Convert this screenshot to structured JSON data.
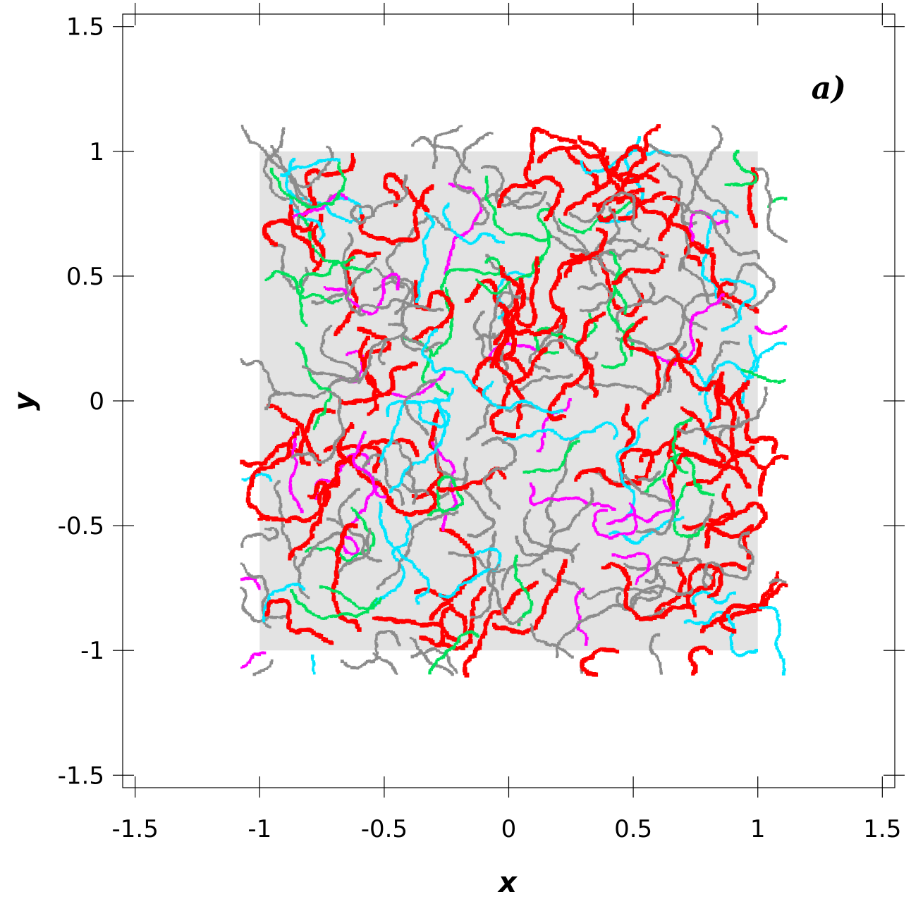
{
  "chart_data": {
    "type": "scatter",
    "title": "",
    "panel_label": "a)",
    "xlabel": "x",
    "ylabel": "y",
    "xlim": [
      -1.55,
      1.55
    ],
    "ylim": [
      -1.55,
      1.55
    ],
    "xticks": [
      -1.5,
      -1,
      -0.5,
      0,
      0.5,
      1,
      1.5
    ],
    "yticks": [
      -1.5,
      -1,
      -0.5,
      0,
      0.5,
      1,
      1.5
    ],
    "xtick_labels": [
      "-1.5",
      "-1",
      "-0.5",
      "0",
      "0.5",
      "1",
      "1.5"
    ],
    "ytick_labels": [
      "-1.5",
      "-1",
      "-0.5",
      "0",
      "0.5",
      "1",
      "1.5"
    ],
    "grid": false,
    "legend": "none",
    "domain_square": {
      "x": [
        -1,
        1
      ],
      "y": [
        -1,
        1
      ],
      "color": "#e3e3e3"
    },
    "series": [
      {
        "color": "#8c8c8c",
        "style": "dense particle network"
      },
      {
        "color": "#ff0000",
        "style": "dense particle network"
      },
      {
        "color": "#ff00ff",
        "style": "particle network"
      },
      {
        "color": "#00e5ff",
        "style": "particle network"
      },
      {
        "color": "#00e05a",
        "style": "particle network"
      }
    ]
  }
}
